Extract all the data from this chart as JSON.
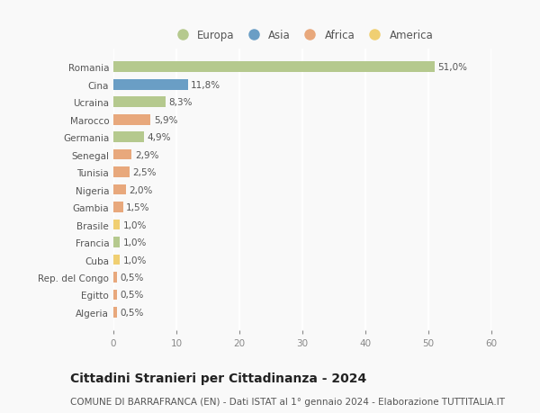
{
  "countries": [
    "Romania",
    "Cina",
    "Ucraina",
    "Marocco",
    "Germania",
    "Senegal",
    "Tunisia",
    "Nigeria",
    "Gambia",
    "Brasile",
    "Francia",
    "Cuba",
    "Rep. del Congo",
    "Egitto",
    "Algeria"
  ],
  "values": [
    51.0,
    11.8,
    8.3,
    5.9,
    4.9,
    2.9,
    2.5,
    2.0,
    1.5,
    1.0,
    1.0,
    1.0,
    0.5,
    0.5,
    0.5
  ],
  "labels": [
    "51,0%",
    "11,8%",
    "8,3%",
    "5,9%",
    "4,9%",
    "2,9%",
    "2,5%",
    "2,0%",
    "1,5%",
    "1,0%",
    "1,0%",
    "1,0%",
    "0,5%",
    "0,5%",
    "0,5%"
  ],
  "colors": [
    "#b5c98e",
    "#6a9ec5",
    "#b5c98e",
    "#e8a87c",
    "#b5c98e",
    "#e8a87c",
    "#e8a87c",
    "#e8a87c",
    "#e8a87c",
    "#f0cf72",
    "#b5c98e",
    "#f0cf72",
    "#e8a87c",
    "#e8a87c",
    "#e8a87c"
  ],
  "continent_colors": {
    "Europa": "#b5c98e",
    "Asia": "#6a9ec5",
    "Africa": "#e8a87c",
    "America": "#f0cf72"
  },
  "xlim": [
    0,
    60
  ],
  "xticks": [
    0,
    10,
    20,
    30,
    40,
    50,
    60
  ],
  "title": "Cittadini Stranieri per Cittadinanza - 2024",
  "subtitle": "COMUNE DI BARRAFRANCA (EN) - Dati ISTAT al 1° gennaio 2024 - Elaborazione TUTTITALIA.IT",
  "background_color": "#f9f9f9",
  "grid_color": "#ffffff",
  "bar_height": 0.6,
  "title_fontsize": 10,
  "subtitle_fontsize": 7.5,
  "label_fontsize": 7.5,
  "tick_fontsize": 7.5,
  "legend_fontsize": 8.5
}
